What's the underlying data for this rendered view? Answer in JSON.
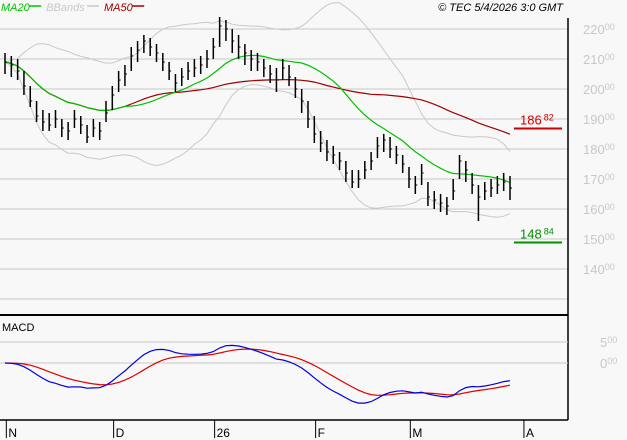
{
  "header": {
    "legend": [
      {
        "label": "MA20",
        "color": "#00c000"
      },
      {
        "label": "BBands",
        "color": "#c8c8c8"
      },
      {
        "label": "MA50",
        "color": "#a00000"
      }
    ],
    "copyright": "© TEC 5/4/2026 3:0 GMT"
  },
  "chart_data": [
    {
      "type": "ohlc-bar",
      "ylim": [
        125,
        225
      ],
      "grid": true,
      "y_ticks": [
        {
          "main": "220",
          "dec": "00",
          "value": 220
        },
        {
          "main": "210",
          "dec": "00",
          "value": 210
        },
        {
          "main": "200",
          "dec": "00",
          "value": 200
        },
        {
          "main": "190",
          "dec": "00",
          "value": 190
        },
        {
          "main": "180",
          "dec": "00",
          "value": 180
        },
        {
          "main": "170",
          "dec": "00",
          "value": 170
        },
        {
          "main": "160",
          "dec": "00",
          "value": 160
        },
        {
          "main": "150",
          "dec": "00",
          "value": 150
        },
        {
          "main": "140",
          "dec": "00",
          "value": 140
        }
      ],
      "x_ticks": [
        "N",
        "D",
        "26",
        "F",
        "M",
        "A"
      ],
      "x_tick_bar_index": [
        1,
        18,
        34,
        50,
        65,
        83
      ],
      "levels": [
        {
          "main": "186",
          "dec": "82",
          "value": 186.82,
          "color": "#cc0000"
        },
        {
          "main": "148",
          "dec": "84",
          "value": 148.84,
          "color": "#009000"
        }
      ],
      "bars_hlc": [
        [
          212,
          205,
          209
        ],
        [
          211,
          204,
          208
        ],
        [
          210,
          203,
          206
        ],
        [
          206,
          198,
          201
        ],
        [
          201,
          194,
          196
        ],
        [
          196,
          189,
          191
        ],
        [
          193,
          186,
          189
        ],
        [
          192,
          186,
          188
        ],
        [
          193,
          187,
          190
        ],
        [
          190,
          184,
          187
        ],
        [
          189,
          183,
          186
        ],
        [
          193,
          187,
          190
        ],
        [
          191,
          185,
          188
        ],
        [
          188,
          182,
          184
        ],
        [
          190,
          184,
          187
        ],
        [
          189,
          183,
          186
        ],
        [
          196,
          189,
          192
        ],
        [
          201,
          193,
          198
        ],
        [
          206,
          199,
          203
        ],
        [
          208,
          201,
          205
        ],
        [
          214,
          206,
          211
        ],
        [
          216,
          209,
          213
        ],
        [
          218,
          212,
          216
        ],
        [
          217,
          211,
          214
        ],
        [
          215,
          209,
          212
        ],
        [
          212,
          206,
          209
        ],
        [
          209,
          203,
          206
        ],
        [
          205,
          199,
          202
        ],
        [
          207,
          201,
          204
        ],
        [
          209,
          203,
          206
        ],
        [
          210,
          204,
          207
        ],
        [
          211,
          205,
          208
        ],
        [
          213,
          207,
          210
        ],
        [
          217,
          210,
          214
        ],
        [
          224,
          214,
          221
        ],
        [
          223,
          216,
          220
        ],
        [
          220,
          212,
          216
        ],
        [
          218,
          210,
          214
        ],
        [
          215,
          208,
          212
        ],
        [
          213,
          206,
          210
        ],
        [
          212,
          206,
          209
        ],
        [
          210,
          204,
          207
        ],
        [
          208,
          202,
          205
        ],
        [
          207,
          199,
          203
        ],
        [
          210,
          203,
          207
        ],
        [
          208,
          201,
          204
        ],
        [
          204,
          197,
          200
        ],
        [
          200,
          192,
          196
        ],
        [
          196,
          187,
          190
        ],
        [
          191,
          182,
          185
        ],
        [
          186,
          179,
          182
        ],
        [
          183,
          176,
          179
        ],
        [
          181,
          175,
          178
        ],
        [
          179,
          173,
          176
        ],
        [
          176,
          169,
          172
        ],
        [
          173,
          167,
          169
        ],
        [
          173,
          167,
          170
        ],
        [
          176,
          170,
          173
        ],
        [
          179,
          173,
          176
        ],
        [
          184,
          177,
          181
        ],
        [
          185,
          179,
          183
        ],
        [
          184,
          177,
          180
        ],
        [
          181,
          175,
          178
        ],
        [
          178,
          172,
          175
        ],
        [
          174,
          167,
          170
        ],
        [
          171,
          165,
          168
        ],
        [
          175,
          168,
          172
        ],
        [
          169,
          161,
          164
        ],
        [
          166,
          160,
          163
        ],
        [
          165,
          159,
          162
        ],
        [
          164,
          158,
          161
        ],
        [
          170,
          163,
          166
        ],
        [
          178,
          170,
          176
        ],
        [
          176,
          169,
          173
        ],
        [
          172,
          165,
          168
        ],
        [
          168,
          156,
          164
        ],
        [
          169,
          163,
          166
        ],
        [
          170,
          164,
          167
        ],
        [
          171,
          165,
          168
        ],
        [
          172,
          166,
          169
        ],
        [
          171,
          163,
          167
        ]
      ]
    },
    {
      "type": "line",
      "title": "MACD",
      "series_colors": {
        "macd": "#0000e0",
        "signal": "#e00000"
      },
      "y_ticks": [
        {
          "main": "5",
          "dec": "00",
          "value": 5
        },
        {
          "main": "0",
          "dec": "00",
          "value": 0
        }
      ]
    }
  ]
}
